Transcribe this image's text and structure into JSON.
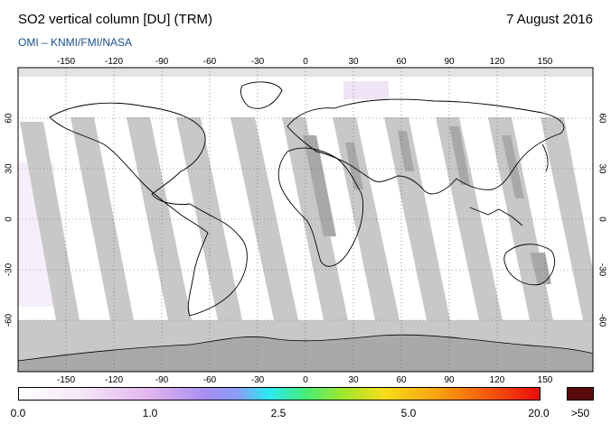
{
  "header": {
    "title": "SO2 vertical column [DU] (TRM)",
    "date": "7 August 2016",
    "source": "OMI  –  KNMI/FMI/NASA"
  },
  "map": {
    "projection": "equirectangular",
    "lon_range": [
      -180,
      180
    ],
    "lat_range": [
      -90,
      90
    ],
    "lon_ticks": [
      -150,
      -120,
      -90,
      -60,
      -30,
      0,
      30,
      60,
      90,
      120,
      150
    ],
    "lat_ticks": [
      60,
      30,
      0,
      -30,
      -60
    ],
    "lon_tick_labels": [
      "-150",
      "-120",
      "-90",
      "-60",
      "-30",
      "0",
      "30",
      "60",
      "90",
      "120",
      "150"
    ],
    "lat_tick_labels": [
      "60",
      "30",
      "0",
      "-30",
      "-60"
    ],
    "colors": {
      "no_data": "#c8c8c8",
      "land_gap": "#a9a9a9",
      "coast": "#000000"
    }
  },
  "colorbar": {
    "labels": [
      "0.0",
      "1.0",
      "2.5",
      "5.0",
      "20.0"
    ],
    "overflow_label": ">50",
    "overflow_color": "#5a0a0a"
  }
}
